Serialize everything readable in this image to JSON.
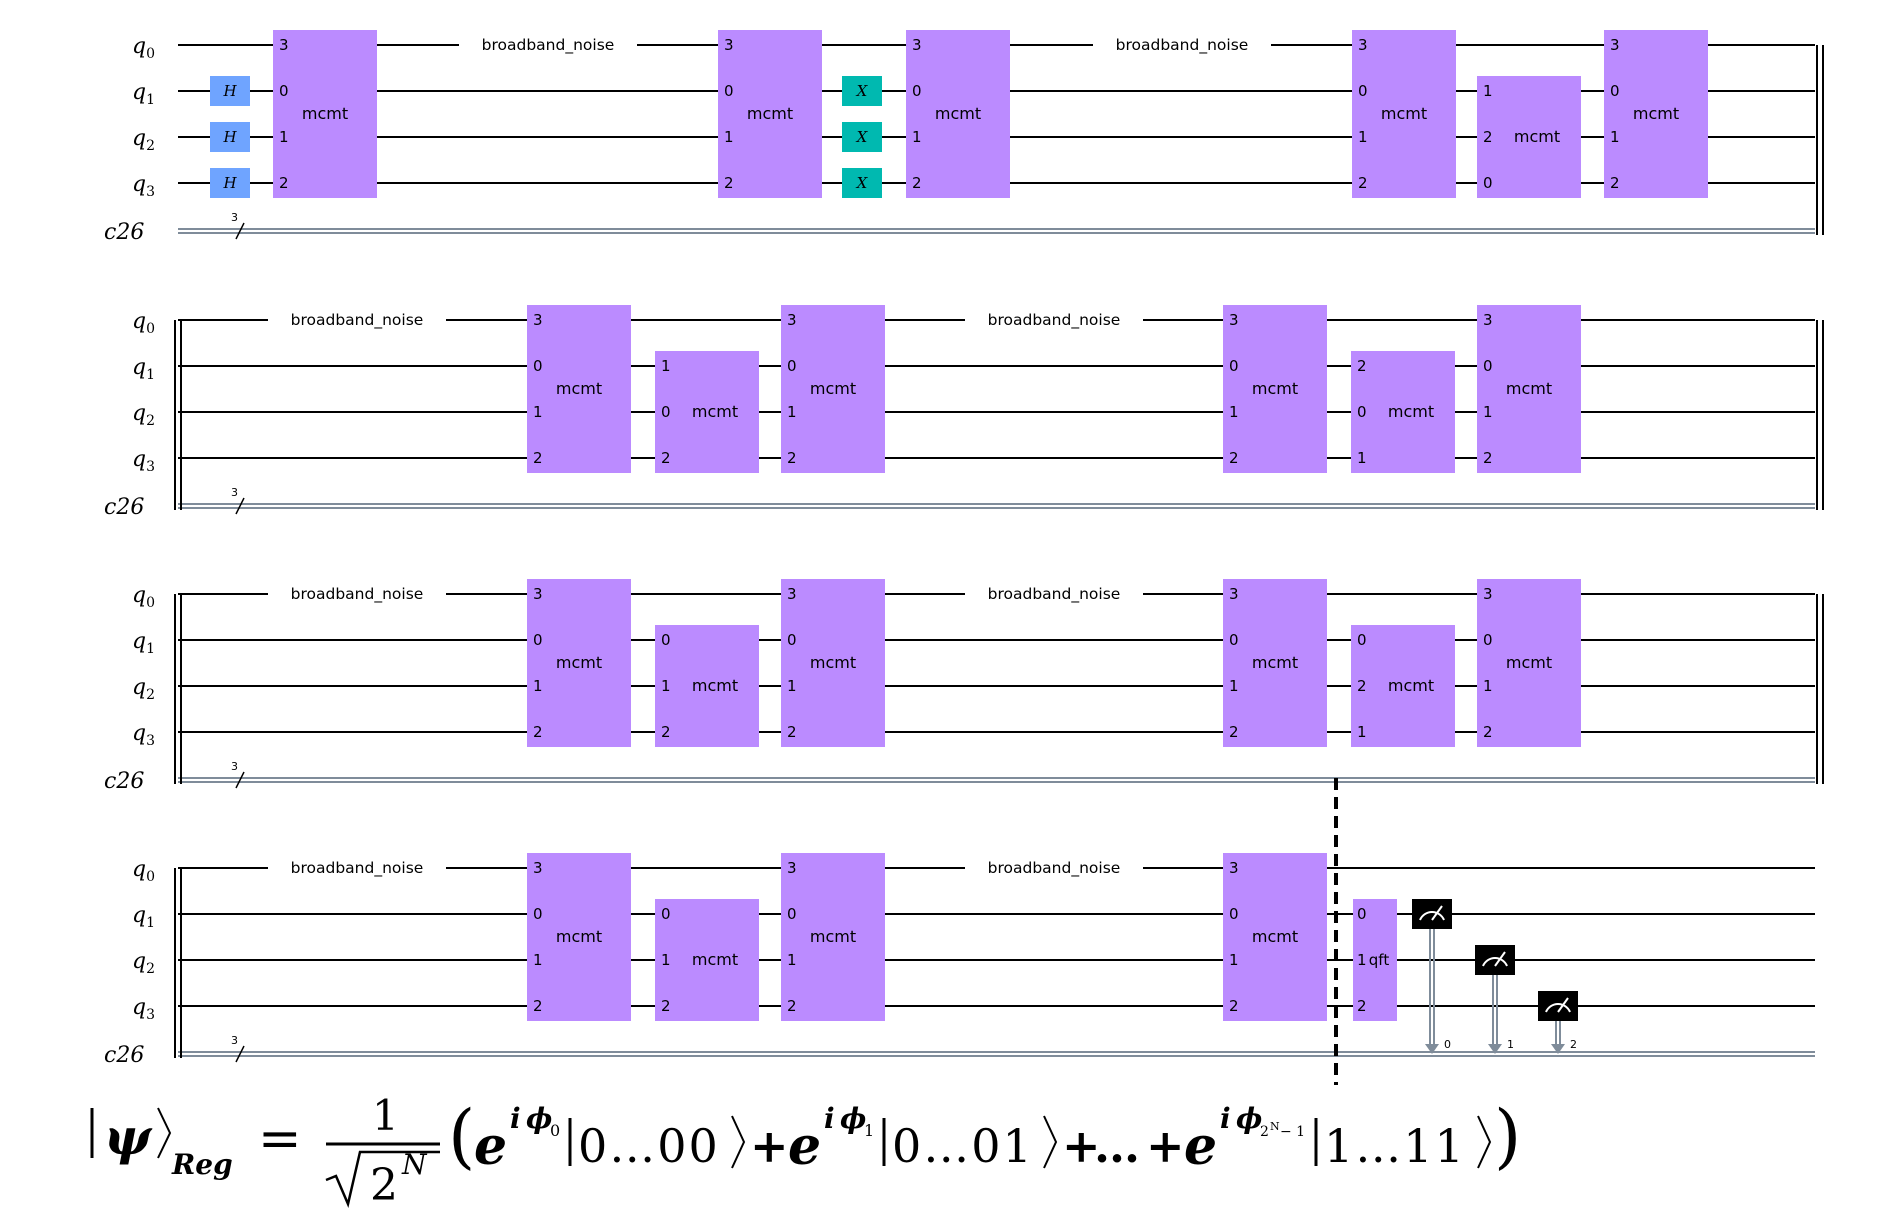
{
  "circuit": {
    "qubits": [
      "q0",
      "q1",
      "q2",
      "q3"
    ],
    "qubit_label_base": "q",
    "qubit_indices": [
      "0",
      "1",
      "2",
      "3"
    ],
    "classical_register": "c26",
    "classical_bits": "3",
    "noise_label": "broadband_noise",
    "gate_label_mcmt": "mcmt",
    "gate_label_qft": "qft",
    "gate_label_h": "H",
    "gate_label_x": "X",
    "rows": [
      {
        "name": "row-1",
        "elements": [
          {
            "kind": "h",
            "qubits": [
              1,
              2,
              3
            ]
          },
          {
            "kind": "mcmt4",
            "pins": [
              "3",
              "0",
              "1",
              "2"
            ]
          },
          {
            "kind": "noise"
          },
          {
            "kind": "mcmt4",
            "pins": [
              "3",
              "0",
              "1",
              "2"
            ]
          },
          {
            "kind": "x",
            "qubits": [
              1,
              2,
              3
            ]
          },
          {
            "kind": "mcmt4",
            "pins": [
              "3",
              "0",
              "1",
              "2"
            ]
          },
          {
            "kind": "noise"
          },
          {
            "kind": "mcmt4",
            "pins": [
              "3",
              "0",
              "1",
              "2"
            ]
          },
          {
            "kind": "mcmt3",
            "pins": [
              "1",
              "2",
              "0"
            ]
          },
          {
            "kind": "mcmt4",
            "pins": [
              "3",
              "0",
              "1",
              "2"
            ]
          }
        ]
      },
      {
        "name": "row-2",
        "elements": [
          {
            "kind": "noise"
          },
          {
            "kind": "mcmt4",
            "pins": [
              "3",
              "0",
              "1",
              "2"
            ]
          },
          {
            "kind": "mcmt3",
            "pins": [
              "1",
              "0",
              "2"
            ]
          },
          {
            "kind": "mcmt4",
            "pins": [
              "3",
              "0",
              "1",
              "2"
            ]
          },
          {
            "kind": "noise"
          },
          {
            "kind": "mcmt4",
            "pins": [
              "3",
              "0",
              "1",
              "2"
            ]
          },
          {
            "kind": "mcmt3",
            "pins": [
              "2",
              "0",
              "1"
            ]
          },
          {
            "kind": "mcmt4",
            "pins": [
              "3",
              "0",
              "1",
              "2"
            ]
          }
        ]
      },
      {
        "name": "row-3",
        "elements": [
          {
            "kind": "noise"
          },
          {
            "kind": "mcmt4",
            "pins": [
              "3",
              "0",
              "1",
              "2"
            ]
          },
          {
            "kind": "mcmt3",
            "pins": [
              "0",
              "1",
              "2"
            ]
          },
          {
            "kind": "mcmt4",
            "pins": [
              "3",
              "0",
              "1",
              "2"
            ]
          },
          {
            "kind": "noise"
          },
          {
            "kind": "mcmt4",
            "pins": [
              "3",
              "0",
              "1",
              "2"
            ]
          },
          {
            "kind": "mcmt3",
            "pins": [
              "0",
              "2",
              "1"
            ]
          },
          {
            "kind": "mcmt4",
            "pins": [
              "3",
              "0",
              "1",
              "2"
            ]
          }
        ]
      },
      {
        "name": "row-4",
        "elements": [
          {
            "kind": "noise"
          },
          {
            "kind": "mcmt4",
            "pins": [
              "3",
              "0",
              "1",
              "2"
            ]
          },
          {
            "kind": "mcmt3",
            "pins": [
              "0",
              "1",
              "2"
            ]
          },
          {
            "kind": "mcmt4",
            "pins": [
              "3",
              "0",
              "1",
              "2"
            ]
          },
          {
            "kind": "noise"
          },
          {
            "kind": "mcmt4",
            "pins": [
              "3",
              "0",
              "1",
              "2"
            ]
          },
          {
            "kind": "barrier"
          },
          {
            "kind": "qft",
            "pins": [
              "0",
              "1",
              "2"
            ]
          },
          {
            "kind": "measure",
            "qubit": 1,
            "bit": "0"
          },
          {
            "kind": "measure",
            "qubit": 2,
            "bit": "1"
          },
          {
            "kind": "measure",
            "qubit": 3,
            "bit": "2"
          }
        ]
      }
    ],
    "colors": {
      "mcmt": "#bb8bff",
      "hadamard": "#6fa4ff",
      "x_gate": "#00b9b0",
      "measure": "#000000",
      "classical_wire": "#7f8c9a"
    }
  },
  "formula": {
    "psi": "ψ",
    "register": "Reg",
    "numerator": "1",
    "sqrt_base": "2",
    "exponent": "N",
    "e": "e",
    "i": "i",
    "phi": "ϕ",
    "phase_0": "0",
    "phase_1": "1",
    "phase_last": "2",
    "phase_last_sup": "N",
    "phase_last_tail": "− 1",
    "ket_1": "0…00",
    "ket_2": "0…01",
    "ket_3": "1…11",
    "ellipsis": "…",
    "plus": "+",
    "equals": "="
  }
}
